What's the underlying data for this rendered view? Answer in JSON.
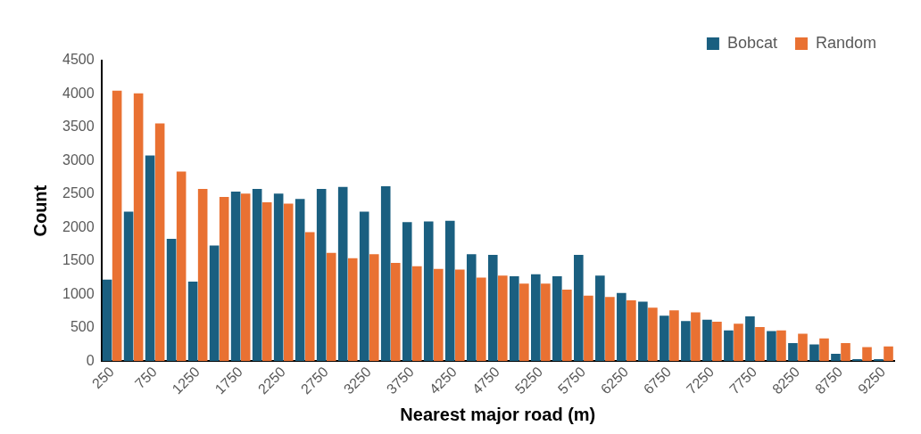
{
  "chart_data": {
    "type": "bar",
    "xlabel": "Nearest major road (m)",
    "ylabel": "Count",
    "categories": [
      "250",
      null,
      "750",
      null,
      "1250",
      null,
      "1750",
      null,
      "2250",
      null,
      "2750",
      null,
      "3250",
      null,
      "3750",
      null,
      "4250",
      null,
      "4750",
      null,
      "5250",
      null,
      "5750",
      null,
      "6250",
      null,
      "6750",
      null,
      "7250",
      null,
      "7750",
      null,
      "8250",
      null,
      "8750",
      null,
      "9250"
    ],
    "series": [
      {
        "name": "Bobcat",
        "color": "#1a5f80",
        "values": [
          1220,
          2240,
          3080,
          1830,
          1190,
          1730,
          2540,
          2580,
          2510,
          2430,
          2580,
          2610,
          2240,
          2620,
          2080,
          2090,
          2100,
          1600,
          1590,
          1270,
          1300,
          1270,
          1590,
          1280,
          1020,
          890,
          680,
          600,
          620,
          460,
          670,
          450,
          270,
          250,
          110,
          30,
          30
        ]
      },
      {
        "name": "Random",
        "color": "#e97132",
        "values": [
          4050,
          4010,
          3560,
          2840,
          2580,
          2460,
          2510,
          2380,
          2360,
          1930,
          1620,
          1540,
          1600,
          1470,
          1420,
          1380,
          1370,
          1250,
          1280,
          1160,
          1160,
          1070,
          980,
          960,
          910,
          800,
          760,
          730,
          590,
          560,
          510,
          460,
          410,
          340,
          270,
          210,
          220
        ]
      }
    ],
    "ylim": [
      0,
      4500
    ],
    "yticks": [
      0,
      500,
      1000,
      1500,
      2000,
      2500,
      3000,
      3500,
      4000,
      4500
    ],
    "grid": false,
    "legend": "top right"
  }
}
